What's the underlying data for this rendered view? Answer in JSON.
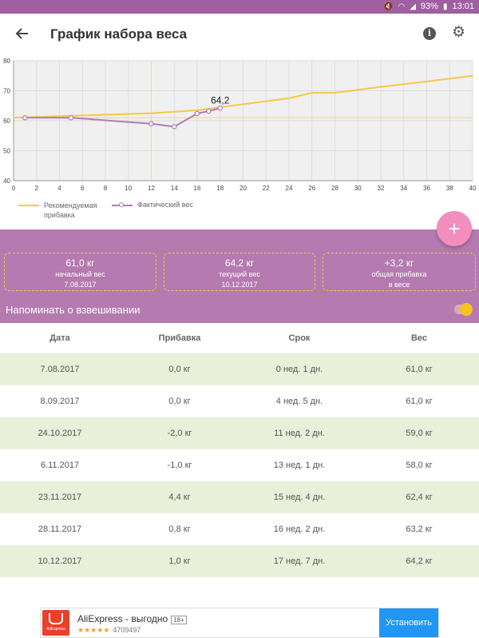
{
  "status_bar": {
    "battery": "93%",
    "time": "13:01"
  },
  "app_bar": {
    "title": "График набора веса"
  },
  "legend": {
    "recommended": "Рекомендуемая прибавка",
    "actual": "Фактический вес"
  },
  "chart_data": {
    "type": "line",
    "title": "",
    "xlabel": "",
    "ylabel": "",
    "xlim": [
      0,
      40
    ],
    "ylim": [
      40,
      80
    ],
    "x_ticks": [
      "0",
      "2",
      "4",
      "6",
      "8",
      "10",
      "12",
      "14",
      "16",
      "18",
      "20",
      "22",
      "24",
      "26",
      "28",
      "30",
      "32",
      "34",
      "36",
      "38",
      "40"
    ],
    "y_ticks": [
      "40",
      "50",
      "60",
      "70",
      "80"
    ],
    "grid": true,
    "reference_lines": {
      "x": 12,
      "y": 61
    },
    "annotation": {
      "text": "64,2",
      "x": 18,
      "y": 64.2
    },
    "series": [
      {
        "name": "Рекомендуемая прибавка",
        "color": "#f5c84c",
        "x": [
          0,
          12,
          16,
          20,
          24,
          26,
          28,
          32,
          36,
          40
        ],
        "y": [
          61,
          62.5,
          63.5,
          65.5,
          67.5,
          69.3,
          69.3,
          71.3,
          73.1,
          75
        ]
      },
      {
        "name": "Фактический вес",
        "color": "#b07cb8",
        "x": [
          1,
          5,
          12,
          14,
          16,
          17,
          18
        ],
        "y": [
          61,
          61,
          59,
          58,
          62.4,
          63.2,
          64.2
        ]
      }
    ]
  },
  "summary": {
    "start": {
      "value": "61,0 кг",
      "label": "начальный вес",
      "date": "7.08.2017"
    },
    "current": {
      "value": "64,2 кг",
      "label": "текущий вес",
      "date": "10.12.2017"
    },
    "gain": {
      "value": "+3,2 кг",
      "label1": "общая прибавка",
      "label2": "в весе"
    }
  },
  "reminder": {
    "label": "Напоминать о взвешивании",
    "enabled": true
  },
  "fab": {
    "label": "+"
  },
  "table": {
    "headers": [
      "Дата",
      "Прибавка",
      "Срок",
      "Вес"
    ],
    "rows": [
      [
        "7.08.2017",
        "0,0 кг",
        "0 нед. 1 дн.",
        "61,0 кг"
      ],
      [
        "8.09.2017",
        "0,0 кг",
        "4 нед. 5 дн.",
        "61,0 кг"
      ],
      [
        "24.10.2017",
        "-2,0 кг",
        "11 нед. 2 дн.",
        "59,0 кг"
      ],
      [
        "6.11.2017",
        "-1,0 кг",
        "13 нед. 1 дн.",
        "58,0 кг"
      ],
      [
        "23.11.2017",
        "4,4 кг",
        "15 нед. 4 дн.",
        "62,4 кг"
      ],
      [
        "28.11.2017",
        "0,8 кг",
        "16 нед. 2 дн.",
        "63,2 кг"
      ],
      [
        "10.12.2017",
        "1,0 кг",
        "17 нед. 7 дн.",
        "64,2 кг"
      ]
    ]
  },
  "ad": {
    "name": "AliExpress - выгодно",
    "age": "18+",
    "stars": "★★★★★",
    "rating_count": "4709497",
    "install": "Установить",
    "logo_text": "AliExpress"
  }
}
